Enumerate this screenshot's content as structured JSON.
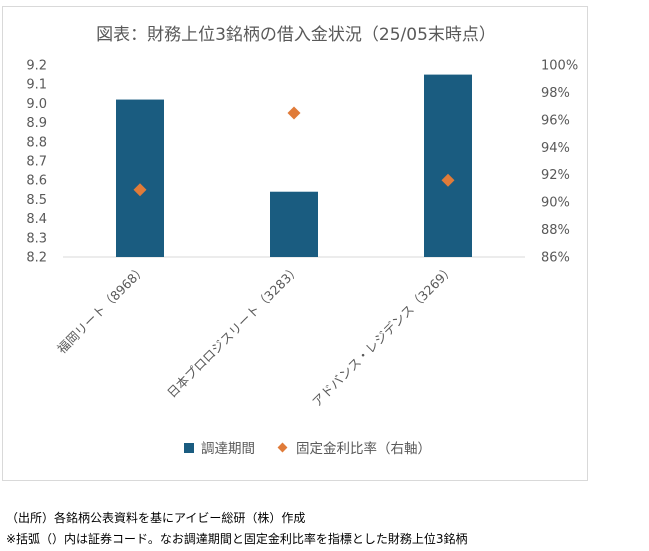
{
  "chart_data": {
    "type": "bar",
    "title": "図表：財務上位3銘柄の借入金状況（25/05末時点）",
    "categories": [
      "福岡リート（8968）",
      "日本プロロジスリート（3283）",
      "アドバンス・レジデンス（3269）"
    ],
    "series": [
      {
        "name": "調達期間",
        "kind": "bar",
        "axis": "left",
        "color": "#1a5c80",
        "values": [
          9.02,
          8.54,
          9.15
        ]
      },
      {
        "name": "固定金利比率（右軸）",
        "kind": "marker",
        "axis": "right",
        "color": "#e07b39",
        "values": [
          0.909,
          0.965,
          0.916
        ]
      }
    ],
    "y_left": {
      "ylim": [
        8.2,
        9.2
      ],
      "ticks": [
        "8.2",
        "8.3",
        "8.4",
        "8.5",
        "8.6",
        "8.7",
        "8.8",
        "8.9",
        "9.0",
        "9.1",
        "9.2"
      ]
    },
    "y_right": {
      "ylim": [
        0.86,
        1.0
      ],
      "ticks": [
        "86%",
        "88%",
        "90%",
        "92%",
        "94%",
        "96%",
        "98%",
        "100%"
      ]
    },
    "grid": false,
    "legend": "bottom"
  },
  "notes": [
    "（出所）各銘柄公表資料を基にアイビー総研（株）作成",
    "※括弧（）内は証券コード。なお調達期間と固定金利比率を指標とした財務上位3銘柄"
  ]
}
